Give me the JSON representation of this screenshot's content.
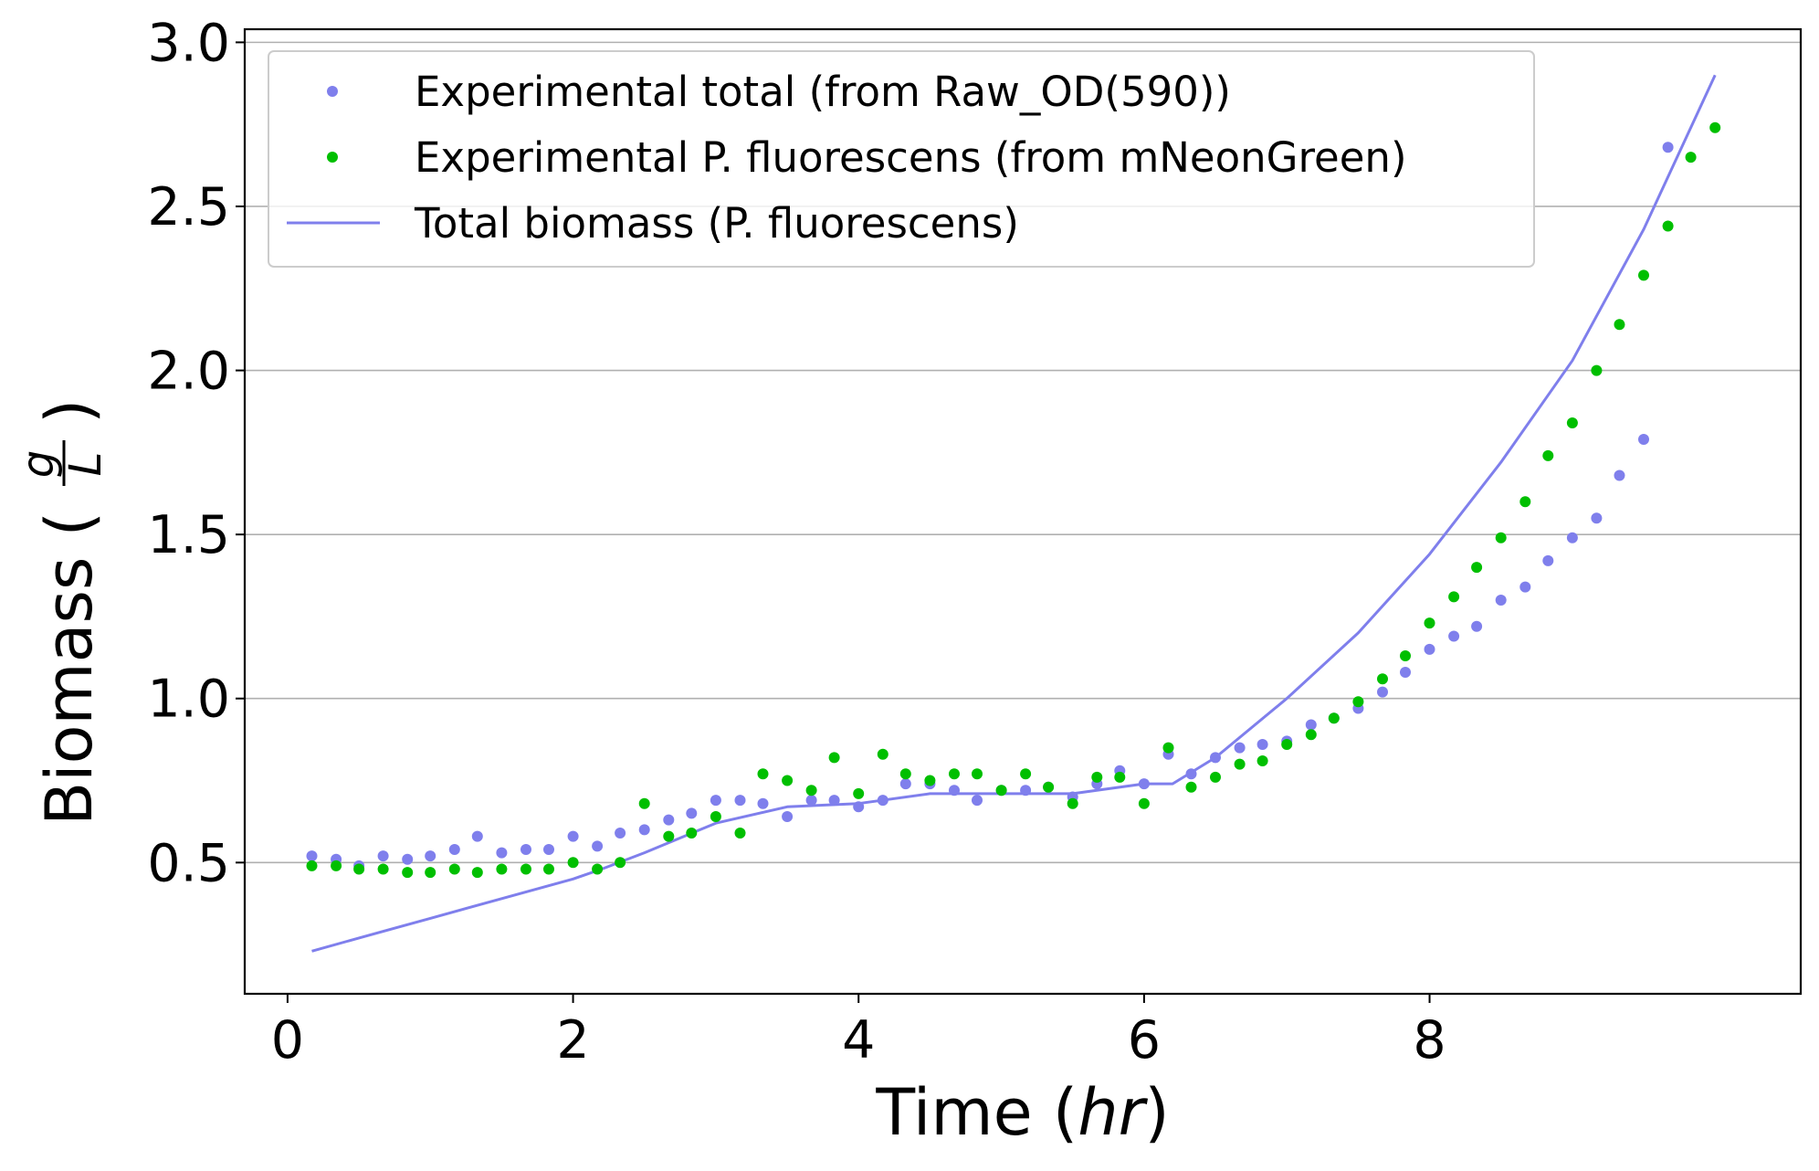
{
  "chart_data": {
    "type": "scatter",
    "xlabel": {
      "prefix": "Time (",
      "italic": "hr",
      "suffix": ")"
    },
    "ylabel": {
      "prefix": "Biomass (",
      "frac_num": "g",
      "frac_den": "L",
      "suffix": ")"
    },
    "xlim": [
      -0.3,
      10.6
    ],
    "ylim": [
      0.1,
      3.04
    ],
    "xticks": [
      0,
      2,
      4,
      6,
      8
    ],
    "xtick_labels": [
      "0",
      "2",
      "4",
      "6",
      "8"
    ],
    "yticks": [
      0.5,
      1.0,
      1.5,
      2.0,
      2.5,
      3.0
    ],
    "ytick_labels": [
      "0.5",
      "1.0",
      "1.5",
      "2.0",
      "2.5",
      "3.0"
    ],
    "grid": "horizontal",
    "legend_position": "upper-left",
    "series": [
      {
        "name": "Experimental total (from Raw_OD(590))",
        "kind": "scatter",
        "color": "#7f7fec",
        "x": [
          0.17,
          0.34,
          0.5,
          0.67,
          0.84,
          1.0,
          1.17,
          1.33,
          1.5,
          1.67,
          1.83,
          2.0,
          2.17,
          2.33,
          2.5,
          2.67,
          2.83,
          3.0,
          3.17,
          3.33,
          3.5,
          3.67,
          3.83,
          4.0,
          4.17,
          4.33,
          4.5,
          4.67,
          4.83,
          5.0,
          5.17,
          5.33,
          5.5,
          5.67,
          5.83,
          6.0,
          6.17,
          6.33,
          6.5,
          6.67,
          6.83,
          7.0,
          7.17,
          7.33,
          7.5,
          7.67,
          7.83,
          8.0,
          8.17,
          8.33,
          8.5,
          8.67,
          8.83,
          9.0,
          9.17,
          9.33,
          9.5,
          9.67
        ],
        "y": [
          0.52,
          0.51,
          0.49,
          0.52,
          0.51,
          0.52,
          0.54,
          0.58,
          0.53,
          0.54,
          0.54,
          0.58,
          0.55,
          0.59,
          0.6,
          0.63,
          0.65,
          0.69,
          0.69,
          0.68,
          0.64,
          0.69,
          0.69,
          0.67,
          0.69,
          0.74,
          0.74,
          0.72,
          0.69,
          0.72,
          0.72,
          0.73,
          0.7,
          0.74,
          0.78,
          0.74,
          0.83,
          0.77,
          0.82,
          0.85,
          0.86,
          0.87,
          0.92,
          0.94,
          0.97,
          1.02,
          1.08,
          1.15,
          1.19,
          1.22,
          1.3,
          1.34,
          1.42,
          1.49,
          1.55,
          1.68,
          1.79,
          2.68
        ]
      },
      {
        "name": "Experimental P. fluorescens (from mNeonGreen)",
        "kind": "scatter",
        "color": "#00bf00",
        "x": [
          0.17,
          0.34,
          0.5,
          0.67,
          0.84,
          1.0,
          1.17,
          1.33,
          1.5,
          1.67,
          1.83,
          2.0,
          2.17,
          2.33,
          2.5,
          2.67,
          2.83,
          3.0,
          3.17,
          3.33,
          3.5,
          3.67,
          3.83,
          4.0,
          4.17,
          4.33,
          4.5,
          4.67,
          4.83,
          5.0,
          5.17,
          5.33,
          5.5,
          5.67,
          5.83,
          6.0,
          6.17,
          6.33,
          6.5,
          6.67,
          6.83,
          7.0,
          7.17,
          7.33,
          7.5,
          7.67,
          7.83,
          8.0,
          8.17,
          8.33,
          8.5,
          8.67,
          8.83,
          9.0,
          9.17,
          9.33,
          9.5,
          9.67,
          9.83,
          10.0
        ],
        "y": [
          0.49,
          0.49,
          0.48,
          0.48,
          0.47,
          0.47,
          0.48,
          0.47,
          0.48,
          0.48,
          0.48,
          0.5,
          0.48,
          0.5,
          0.68,
          0.58,
          0.59,
          0.64,
          0.59,
          0.77,
          0.75,
          0.72,
          0.82,
          0.71,
          0.83,
          0.77,
          0.75,
          0.77,
          0.77,
          0.72,
          0.77,
          0.73,
          0.68,
          0.76,
          0.76,
          0.68,
          0.85,
          0.73,
          0.76,
          0.8,
          0.81,
          0.86,
          0.89,
          0.94,
          0.99,
          1.06,
          1.13,
          1.23,
          1.31,
          1.4,
          1.49,
          1.6,
          1.74,
          1.84,
          2.0,
          2.14,
          2.29,
          2.44,
          2.65,
          2.74
        ]
      },
      {
        "name": "Total biomass (P. fluorescens)",
        "kind": "line",
        "color": "#7f7fec",
        "x": [
          0.17,
          0.5,
          1.0,
          1.5,
          2.0,
          2.2,
          2.5,
          3.0,
          3.5,
          4.0,
          4.5,
          5.0,
          5.5,
          6.0,
          6.2,
          6.5,
          7.0,
          7.5,
          8.0,
          8.5,
          9.0,
          9.5,
          10.0
        ],
        "y": [
          0.23,
          0.27,
          0.33,
          0.39,
          0.45,
          0.48,
          0.53,
          0.62,
          0.67,
          0.68,
          0.71,
          0.71,
          0.71,
          0.74,
          0.74,
          0.82,
          1.0,
          1.2,
          1.44,
          1.72,
          2.03,
          2.43,
          2.9
        ]
      }
    ]
  }
}
